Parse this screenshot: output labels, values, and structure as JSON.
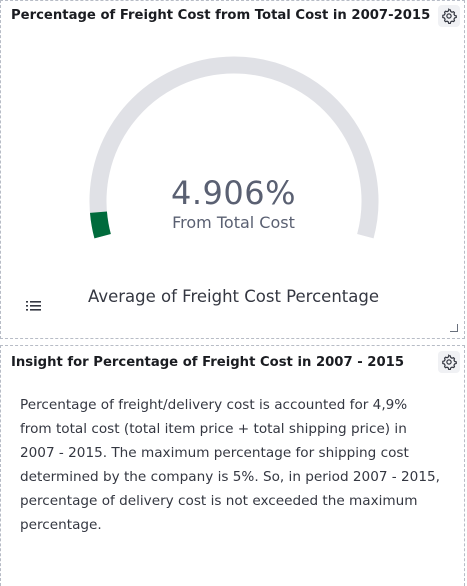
{
  "gauge_panel": {
    "title": "Percentage of Freight Cost from Total Cost in 2007-2015",
    "value_text": "4.906%",
    "subtitle": "From Total Cost",
    "label": "Average of Freight Cost Percentage",
    "value_fraction": 0.049,
    "colors": {
      "track": "#e0e1e6",
      "fill": "#006b3c"
    },
    "icons": {
      "settings": "gear-icon",
      "legend": "list-icon",
      "resize": "resize-handle-icon"
    }
  },
  "insight_panel": {
    "title": "Insight for Percentage of Freight Cost in 2007 - 2015",
    "text": "Percentage of freight/delivery cost is accounted for 4,9% from total cost (total item price + total shipping price) in 2007 - 2015. The maximum percentage for shipping cost determined by the company is 5%. So, in period 2007 - 2015, percentage of delivery cost is not exceeded the maximum percentage.",
    "icons": {
      "settings": "gear-icon"
    }
  }
}
